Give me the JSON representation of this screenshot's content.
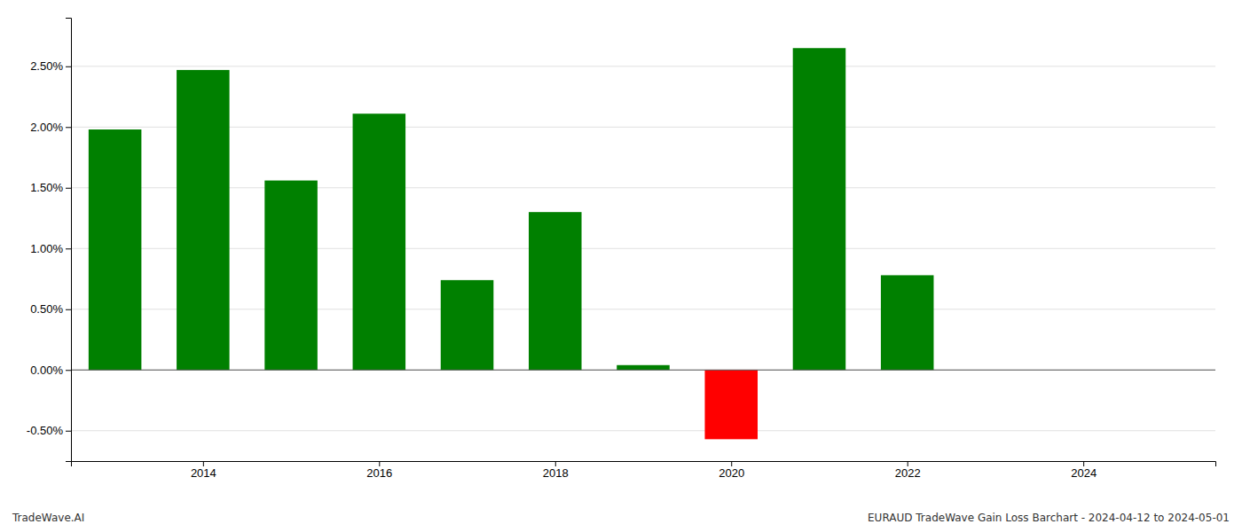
{
  "chart_data": {
    "type": "bar",
    "x": [
      2013,
      2014,
      2015,
      2016,
      2017,
      2018,
      2019,
      2020,
      2021,
      2022
    ],
    "values": [
      0.0198,
      0.0247,
      0.0156,
      0.0211,
      0.0074,
      0.013,
      0.0004,
      -0.0057,
      0.0265,
      0.0078
    ],
    "colors": [
      "#008000",
      "#008000",
      "#008000",
      "#008000",
      "#008000",
      "#008000",
      "#008000",
      "#ff0000",
      "#008000",
      "#008000"
    ],
    "xlim": [
      2012.5,
      2025.5
    ],
    "xticks": [
      2014,
      2016,
      2018,
      2020,
      2022,
      2024
    ],
    "ylim": [
      -0.0075,
      0.029
    ],
    "yticks": [
      {
        "value": -0.005,
        "label": "-0.50%"
      },
      {
        "value": 0.0,
        "label": "0.00%"
      },
      {
        "value": 0.005,
        "label": "0.50%"
      },
      {
        "value": 0.01,
        "label": "1.00%"
      },
      {
        "value": 0.015,
        "label": "1.50%"
      },
      {
        "value": 0.02,
        "label": "2.00%"
      },
      {
        "value": 0.025,
        "label": "2.50%"
      }
    ],
    "grid": true,
    "annotations": [
      "TradeWave.AI",
      "EURAUD TradeWave Gain Loss Barchart - 2024-04-12 to 2024-05-01"
    ]
  }
}
